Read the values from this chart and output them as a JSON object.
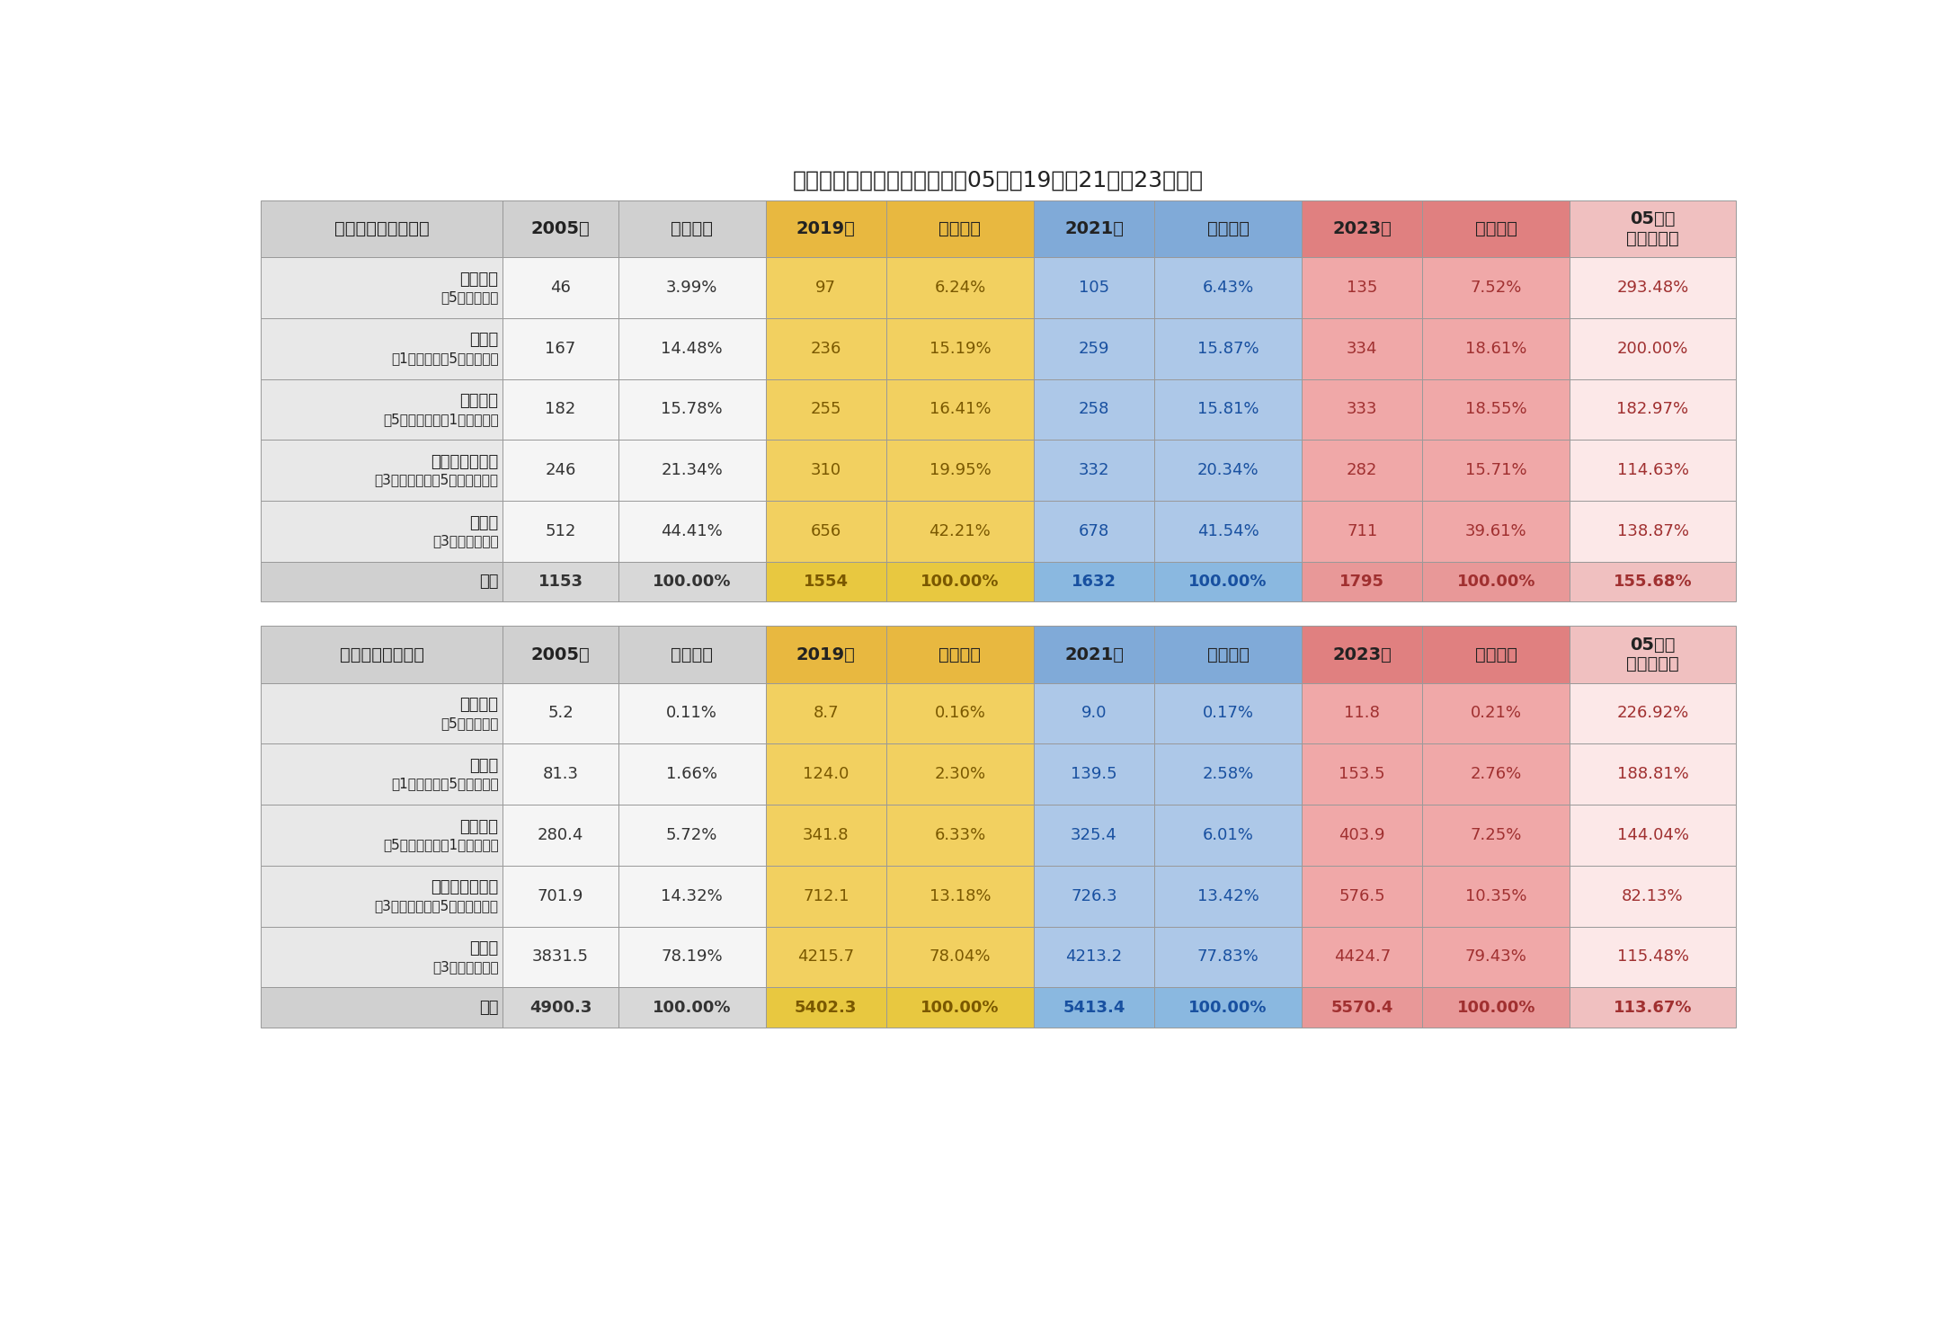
{
  "title": "＜階層別の純金融資産推移（05年・19年・21年・23年）＞",
  "table1_header_col0": "純金融資産（兆円）",
  "table2_header_col0": "世帯数（万世帯）",
  "col_headers": [
    "2005年",
    "（割合）",
    "2019年",
    "（割合）",
    "2021年",
    "（割合）",
    "2023年",
    "（割合）",
    "05年比\n（増減率）"
  ],
  "row_labels_line1": [
    "超富裕層",
    "富裕層",
    "準富裕層",
    "アッパーマス層",
    "マス層",
    "全体"
  ],
  "row_labels_line2": [
    "（5億円以上）",
    "（1億円以上　5億円未満）",
    "（5千万円以上　1億円未満）",
    "（3千万円以上　5千万円未満）",
    "（3千万円未満）",
    ""
  ],
  "table1_data": [
    [
      "46",
      "3.99%",
      "97",
      "6.24%",
      "105",
      "6.43%",
      "135",
      "7.52%",
      "293.48%"
    ],
    [
      "167",
      "14.48%",
      "236",
      "15.19%",
      "259",
      "15.87%",
      "334",
      "18.61%",
      "200.00%"
    ],
    [
      "182",
      "15.78%",
      "255",
      "16.41%",
      "258",
      "15.81%",
      "333",
      "18.55%",
      "182.97%"
    ],
    [
      "246",
      "21.34%",
      "310",
      "19.95%",
      "332",
      "20.34%",
      "282",
      "15.71%",
      "114.63%"
    ],
    [
      "512",
      "44.41%",
      "656",
      "42.21%",
      "678",
      "41.54%",
      "711",
      "39.61%",
      "138.87%"
    ],
    [
      "1153",
      "100.00%",
      "1554",
      "100.00%",
      "1632",
      "100.00%",
      "1795",
      "100.00%",
      "155.68%"
    ]
  ],
  "table2_data": [
    [
      "5.2",
      "0.11%",
      "8.7",
      "0.16%",
      "9.0",
      "0.17%",
      "11.8",
      "0.21%",
      "226.92%"
    ],
    [
      "81.3",
      "1.66%",
      "124.0",
      "2.30%",
      "139.5",
      "2.58%",
      "153.5",
      "2.76%",
      "188.81%"
    ],
    [
      "280.4",
      "5.72%",
      "341.8",
      "6.33%",
      "325.4",
      "6.01%",
      "403.9",
      "7.25%",
      "144.04%"
    ],
    [
      "701.9",
      "14.32%",
      "712.1",
      "13.18%",
      "726.3",
      "13.42%",
      "576.5",
      "10.35%",
      "82.13%"
    ],
    [
      "3831.5",
      "78.19%",
      "4215.7",
      "78.04%",
      "4213.2",
      "77.83%",
      "4424.7",
      "79.43%",
      "115.48%"
    ],
    [
      "4900.3",
      "100.00%",
      "5402.3",
      "100.00%",
      "5413.4",
      "100.00%",
      "5570.4",
      "100.00%",
      "113.67%"
    ]
  ],
  "col_bg_data": [
    "#f5f5f5",
    "#f5f5f5",
    "#f2d060",
    "#f2d060",
    "#adc8e8",
    "#adc8e8",
    "#f0a8a8",
    "#f0a8a8",
    "#fce8e8"
  ],
  "col_bg_header": [
    "#d0d0d0",
    "#d0d0d0",
    "#e8b840",
    "#e8b840",
    "#80aad8",
    "#80aad8",
    "#e08080",
    "#e08080",
    "#f0c0c0"
  ],
  "col_bg_total": [
    "#d8d8d8",
    "#d8d8d8",
    "#e8c840",
    "#e8c840",
    "#8ab8e0",
    "#8ab8e0",
    "#e89898",
    "#e89898",
    "#f0c0c0"
  ],
  "col_text": [
    "#333333",
    "#333333",
    "#7a5800",
    "#7a5800",
    "#1850a0",
    "#1850a0",
    "#a03030",
    "#a03030",
    "#a03030"
  ],
  "label_bg": "#e8e8e8",
  "label_bg_total": "#d0d0d0",
  "header_label_bg": "#d0d0d0",
  "border_color": "#999999",
  "title_fontsize": 18,
  "header_fontsize": 14,
  "data_fontsize": 13,
  "label_fontsize1": 13,
  "label_fontsize2": 11
}
